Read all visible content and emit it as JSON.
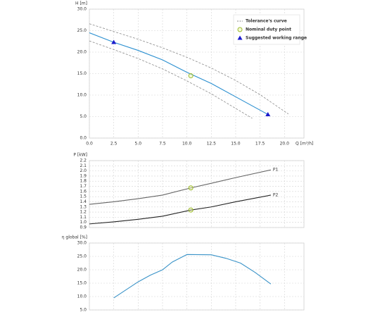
{
  "chart_data": [
    {
      "type": "line",
      "ylabel": "H [m]",
      "xlabel": "Q [m³/h]",
      "xlim": [
        0,
        22
      ],
      "ylim": [
        0,
        30
      ],
      "xticks": [
        {
          "value": 0,
          "label": "0.0"
        },
        2.5,
        {
          "value": 5,
          "label": "5.0"
        },
        7.5,
        {
          "value": 10,
          "label": "10.0"
        },
        12.5,
        {
          "value": 15,
          "label": "15.0"
        },
        17.5,
        {
          "value": 20,
          "label": "20.0"
        }
      ],
      "yticks": [
        {
          "value": 0,
          "label": "0.0"
        },
        {
          "value": 5,
          "label": "5.0"
        },
        {
          "value": 10,
          "label": "10.0"
        },
        {
          "value": 15,
          "label": "15.0"
        },
        {
          "value": 20,
          "label": "20.0"
        },
        {
          "value": 25,
          "label": "25.0"
        },
        {
          "value": 30,
          "label": "30.0"
        }
      ],
      "grid": true,
      "legend": "upper right",
      "series": [
        {
          "name": "Tolerance's curve",
          "style": "dashed",
          "color": "#8a8a8a",
          "x": [
            0,
            2.5,
            5,
            7.5,
            10,
            12.5,
            15,
            17.5,
            20.4
          ],
          "values": [
            26.6,
            24.8,
            23,
            21,
            18.8,
            16.3,
            13.4,
            10.1,
            5.6
          ]
        },
        {
          "style": "dashed",
          "color": "#8a8a8a",
          "x": [
            0,
            2.5,
            5,
            7.5,
            10,
            12.5,
            15,
            16.7
          ],
          "values": [
            22.6,
            20.6,
            18.5,
            16.1,
            13.3,
            10.3,
            6.9,
            4.6
          ]
        },
        {
          "style": "solid",
          "color": "#2a8fd0",
          "x": [
            0,
            2.5,
            5,
            7.5,
            10,
            12.5,
            15,
            18.3
          ],
          "values": [
            24.5,
            22.3,
            20.4,
            18.2,
            15.3,
            12.7,
            9.6,
            5.5
          ]
        },
        {
          "name": "Nominal duty point",
          "style": "none",
          "marker": "circle",
          "color": "#9bbb2b",
          "x": [
            10.4
          ],
          "values": [
            14.5
          ]
        },
        {
          "name": "Suggested working range",
          "style": "none",
          "marker": "triangle",
          "color": "#1a1acc",
          "x": [
            2.5,
            18.3
          ],
          "values": [
            22.3,
            5.5
          ]
        }
      ]
    },
    {
      "type": "line",
      "ylabel": "P [kW]",
      "xlim": [
        0,
        22
      ],
      "ylim": [
        0.9,
        2.2
      ],
      "xticks": [
        0,
        2.5,
        5,
        7.5,
        10,
        12.5,
        15,
        17.5,
        20
      ],
      "xtick_labels": false,
      "yticks": [
        0.9,
        {
          "value": 1,
          "label": "1.0"
        },
        1.1,
        1.2,
        1.3,
        1.4,
        1.5,
        1.6,
        1.7,
        1.8,
        1.9,
        {
          "value": 2,
          "label": "2.0"
        },
        2.1,
        2.2
      ],
      "grid": true,
      "series_labels": "end",
      "series": [
        {
          "name": "P1",
          "style": "solid",
          "color": "#666666",
          "x": [
            0,
            2.5,
            5,
            7.5,
            10.4,
            12.5,
            15,
            18.6
          ],
          "values": [
            1.35,
            1.4,
            1.46,
            1.53,
            1.67,
            1.76,
            1.87,
            2.02
          ]
        },
        {
          "name": "P2",
          "style": "solid",
          "color": "#222222",
          "x": [
            0,
            2.5,
            5,
            7.5,
            10.4,
            12.5,
            15,
            18.6
          ],
          "values": [
            0.97,
            1.01,
            1.06,
            1.12,
            1.24,
            1.3,
            1.4,
            1.53
          ]
        },
        {
          "style": "none",
          "marker": "circle",
          "color": "#9bbb2b",
          "x": [
            10.4,
            10.4
          ],
          "values": [
            1.67,
            1.24
          ]
        }
      ]
    },
    {
      "type": "line",
      "ylabel": "η global [%]",
      "xlim": [
        0,
        22
      ],
      "ylim": [
        5,
        30
      ],
      "xticks": [
        0,
        2.5,
        5,
        7.5,
        10,
        12.5,
        15,
        17.5,
        20
      ],
      "xtick_labels": false,
      "yticks": [
        {
          "value": 5,
          "label": "5.0"
        },
        {
          "value": 10,
          "label": "10.0"
        },
        {
          "value": 15,
          "label": "15.0"
        },
        {
          "value": 20,
          "label": "20.0"
        },
        {
          "value": 25,
          "label": "25.0"
        },
        {
          "value": 30,
          "label": "30.0"
        }
      ],
      "grid": true,
      "series": [
        {
          "style": "solid",
          "color": "#3a93c8",
          "x": [
            2.5,
            5,
            6.25,
            7.5,
            8.5,
            10,
            12.5,
            14,
            15.5,
            17,
            18.6
          ],
          "values": [
            9.5,
            15.5,
            18,
            20,
            22.9,
            25.7,
            25.6,
            24.3,
            22.5,
            19,
            14.7
          ]
        }
      ]
    }
  ]
}
